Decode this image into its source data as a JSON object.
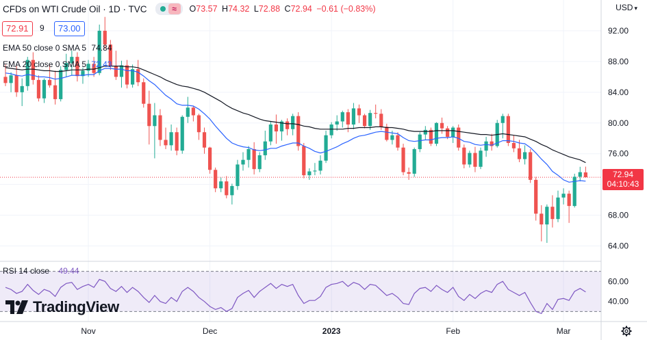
{
  "header": {
    "symbol": "CFDs on WTI Crude Oil · 1D · TVC",
    "ohlc": [
      {
        "k": "O",
        "v": "73.57"
      },
      {
        "k": "H",
        "v": "74.32"
      },
      {
        "k": "L",
        "v": "72.88"
      },
      {
        "k": "C",
        "v": "72.94"
      },
      {
        "k": "",
        "v": "−0.61 (−0.83%)"
      }
    ]
  },
  "trade": {
    "bid": "72.91",
    "spread": "9",
    "ask": "73.00"
  },
  "indicators": {
    "ema50_label": "EMA 50 close 0 SMA 5",
    "ema50_value": "74.84",
    "ema20_label": "EMA 20 close 0 SMA 5",
    "ema20_value": "72.43",
    "rsi_label": "RSI 14 close",
    "rsi_value": "49.44"
  },
  "currency": "USD",
  "last_price": {
    "price": "72.94",
    "countdown": "04:10:43"
  },
  "brand": "TradingView",
  "colors": {
    "up": "#22ab94",
    "down": "#ef5350",
    "ema20": "#2962ff",
    "ema50": "#131722",
    "rsi": "#7e57c2",
    "last": "#f23645"
  },
  "chart_data": {
    "type": "candlestick",
    "y_ticks": [
      "92.00",
      "88.00",
      "84.00",
      "80.00",
      "76.00",
      "72.00",
      "68.00",
      "64.00"
    ],
    "rsi_ticks": [
      "60.00",
      "40.00"
    ],
    "x_ticks": [
      {
        "label": "Nov",
        "i": 15
      },
      {
        "label": "Dec",
        "i": 37
      },
      {
        "label": "2023",
        "i": 59
      },
      {
        "label": "Feb",
        "i": 81
      },
      {
        "label": "Mar",
        "i": 101
      }
    ],
    "ylim": [
      62,
      96
    ],
    "rsi_band": [
      30,
      70
    ],
    "candles": [
      [
        86.0,
        87.6,
        84.8,
        85.2
      ],
      [
        85.2,
        86.6,
        84.0,
        86.2
      ],
      [
        86.2,
        87.4,
        83.4,
        84.0
      ],
      [
        84.0,
        85.8,
        82.2,
        84.8
      ],
      [
        84.8,
        88.6,
        84.2,
        88.2
      ],
      [
        88.2,
        89.2,
        85.0,
        85.6
      ],
      [
        85.6,
        86.2,
        82.8,
        83.2
      ],
      [
        83.2,
        85.8,
        82.6,
        85.6
      ],
      [
        85.6,
        87.6,
        84.6,
        84.9
      ],
      [
        84.9,
        86.8,
        82.4,
        83.1
      ],
      [
        83.1,
        87.4,
        82.8,
        86.9
      ],
      [
        86.9,
        89.0,
        86.0,
        87.8
      ],
      [
        87.8,
        89.4,
        86.2,
        88.6
      ],
      [
        88.6,
        89.2,
        85.4,
        86.1
      ],
      [
        86.1,
        87.2,
        85.1,
        86.8
      ],
      [
        86.8,
        88.2,
        86.0,
        87.7
      ],
      [
        87.7,
        88.6,
        86.0,
        86.5
      ],
      [
        86.5,
        92.8,
        86.2,
        92.0
      ],
      [
        92.0,
        93.8,
        89.6,
        90.2
      ],
      [
        90.2,
        90.8,
        86.9,
        87.4
      ],
      [
        87.4,
        89.4,
        85.6,
        86.0
      ],
      [
        86.0,
        88.1,
        84.6,
        87.5
      ],
      [
        87.5,
        88.2,
        84.5,
        85.0
      ],
      [
        85.0,
        87.6,
        84.6,
        87.0
      ],
      [
        87.0,
        88.2,
        84.8,
        85.3
      ],
      [
        85.3,
        85.8,
        82.0,
        82.5
      ],
      [
        82.5,
        84.2,
        77.2,
        79.6
      ],
      [
        79.6,
        82.6,
        75.4,
        81.0
      ],
      [
        81.0,
        81.8,
        77.0,
        77.8
      ],
      [
        77.8,
        79.4,
        76.6,
        77.1
      ],
      [
        77.1,
        79.8,
        76.4,
        78.8
      ],
      [
        78.8,
        79.4,
        75.8,
        76.4
      ],
      [
        76.4,
        81.0,
        76.0,
        80.8
      ],
      [
        80.8,
        83.4,
        80.0,
        82.0
      ],
      [
        82.0,
        82.2,
        80.2,
        81.0
      ],
      [
        81.0,
        81.2,
        77.8,
        78.8
      ],
      [
        78.8,
        79.4,
        76.0,
        76.8
      ],
      [
        76.8,
        76.9,
        73.4,
        73.9
      ],
      [
        73.9,
        74.2,
        71.0,
        71.5
      ],
      [
        71.5,
        72.9,
        71.0,
        72.4
      ],
      [
        72.4,
        73.1,
        70.2,
        70.6
      ],
      [
        70.6,
        72.1,
        69.4,
        71.8
      ],
      [
        71.8,
        75.2,
        71.3,
        74.6
      ],
      [
        74.6,
        76.2,
        73.8,
        75.2
      ],
      [
        75.2,
        77.0,
        74.2,
        76.6
      ],
      [
        76.6,
        77.5,
        73.3,
        74.0
      ],
      [
        74.0,
        76.2,
        73.6,
        75.8
      ],
      [
        75.8,
        79.0,
        75.2,
        77.6
      ],
      [
        77.6,
        80.2,
        77.1,
        79.8
      ],
      [
        79.8,
        81.1,
        77.3,
        78.9
      ],
      [
        78.9,
        80.4,
        77.7,
        80.2
      ],
      [
        80.2,
        80.6,
        78.4,
        79.2
      ],
      [
        79.2,
        81.2,
        78.4,
        80.9
      ],
      [
        80.9,
        81.4,
        76.4,
        77.0
      ],
      [
        77.0,
        77.4,
        72.8,
        73.2
      ],
      [
        73.2,
        74.1,
        72.6,
        73.7
      ],
      [
        73.7,
        74.8,
        73.2,
        73.8
      ],
      [
        73.8,
        75.8,
        73.3,
        75.1
      ],
      [
        75.1,
        79.0,
        74.8,
        78.4
      ],
      [
        78.4,
        80.1,
        78.0,
        79.8
      ],
      [
        79.8,
        81.0,
        79.0,
        80.2
      ],
      [
        80.2,
        81.6,
        79.4,
        81.4
      ],
      [
        81.4,
        81.8,
        78.8,
        79.8
      ],
      [
        79.8,
        82.6,
        79.2,
        81.9
      ],
      [
        81.9,
        82.4,
        80.0,
        81.0
      ],
      [
        81.0,
        81.2,
        79.3,
        79.6
      ],
      [
        79.6,
        81.7,
        79.1,
        81.3
      ],
      [
        81.3,
        82.4,
        80.6,
        81.2
      ],
      [
        81.2,
        81.8,
        79.1,
        79.5
      ],
      [
        79.5,
        79.9,
        77.6,
        77.8
      ],
      [
        77.8,
        79.0,
        77.2,
        78.4
      ],
      [
        78.4,
        78.8,
        76.4,
        76.8
      ],
      [
        76.8,
        77.3,
        73.2,
        73.6
      ],
      [
        73.6,
        74.2,
        72.6,
        73.4
      ],
      [
        73.4,
        76.8,
        73.0,
        76.6
      ],
      [
        76.6,
        78.8,
        76.2,
        78.5
      ],
      [
        78.5,
        79.6,
        77.8,
        79.1
      ],
      [
        79.1,
        79.4,
        77.0,
        77.3
      ],
      [
        77.3,
        80.1,
        77.0,
        80.0
      ],
      [
        80.0,
        80.7,
        78.6,
        79.3
      ],
      [
        79.3,
        79.6,
        77.9,
        78.2
      ],
      [
        78.2,
        79.6,
        77.4,
        79.4
      ],
      [
        79.4,
        79.8,
        76.4,
        76.8
      ],
      [
        76.8,
        77.2,
        74.1,
        74.6
      ],
      [
        74.6,
        76.4,
        74.2,
        76.1
      ],
      [
        76.1,
        76.9,
        73.6,
        74.3
      ],
      [
        74.3,
        76.8,
        74.0,
        76.4
      ],
      [
        76.4,
        78.2,
        75.6,
        77.6
      ],
      [
        77.6,
        78.6,
        76.4,
        77.0
      ],
      [
        77.0,
        80.4,
        76.8,
        80.0
      ],
      [
        80.0,
        81.2,
        78.0,
        80.9
      ],
      [
        80.9,
        81.2,
        77.0,
        77.4
      ],
      [
        77.4,
        78.4,
        76.2,
        76.7
      ],
      [
        76.7,
        77.8,
        74.9,
        75.3
      ],
      [
        75.3,
        77.1,
        74.6,
        76.2
      ],
      [
        76.2,
        76.6,
        72.2,
        72.6
      ],
      [
        72.6,
        73.0,
        67.3,
        68.2
      ],
      [
        68.2,
        69.3,
        64.6,
        66.8
      ],
      [
        66.8,
        69.4,
        64.4,
        69.1
      ],
      [
        69.1,
        70.6,
        66.4,
        67.5
      ],
      [
        67.5,
        71.2,
        67.1,
        70.3
      ],
      [
        70.3,
        71.5,
        69.4,
        70.8
      ],
      [
        70.8,
        71.2,
        67.0,
        69.2
      ],
      [
        69.2,
        73.4,
        69.0,
        73.0
      ],
      [
        73.0,
        74.3,
        72.4,
        73.6
      ],
      [
        73.57,
        74.32,
        72.88,
        72.94
      ]
    ],
    "ema20": [
      86.5,
      86.4,
      86.2,
      86.1,
      86.3,
      86.2,
      86.0,
      86.0,
      85.9,
      85.7,
      85.8,
      86.0,
      86.2,
      86.2,
      86.2,
      86.3,
      86.3,
      86.8,
      87.1,
      87.1,
      87.0,
      87.0,
      86.8,
      86.8,
      86.6,
      86.1,
      85.5,
      85.0,
      84.3,
      83.6,
      83.1,
      82.5,
      82.3,
      82.3,
      82.2,
      81.8,
      81.2,
      80.5,
      79.6,
      78.8,
      78.0,
      77.4,
      77.1,
      76.9,
      76.8,
      76.5,
      76.4,
      76.5,
      76.7,
      76.7,
      77.0,
      77.2,
      77.4,
      77.4,
      77.0,
      76.7,
      76.3,
      76.1,
      76.3,
      76.6,
      76.9,
      77.3,
      77.6,
      78.0,
      78.3,
      78.4,
      78.6,
      78.8,
      78.9,
      78.8,
      78.7,
      78.6,
      78.1,
      77.7,
      77.6,
      77.7,
      77.8,
      77.8,
      78.0,
      78.1,
      78.1,
      78.2,
      78.0,
      77.6,
      77.5,
      77.2,
      77.1,
      77.2,
      77.1,
      77.4,
      77.7,
      77.7,
      77.6,
      77.4,
      77.3,
      76.8,
      76.1,
      75.3,
      74.6,
      73.7,
      73.2,
      72.6,
      72.3,
      72.4,
      72.5,
      72.43
    ],
    "ema50": [
      87.2,
      87.1,
      87.0,
      86.9,
      87.0,
      87.0,
      86.9,
      86.8,
      86.8,
      86.7,
      86.7,
      86.8,
      86.9,
      86.9,
      86.9,
      87.0,
      87.0,
      87.2,
      87.4,
      87.4,
      87.4,
      87.4,
      87.3,
      87.3,
      87.2,
      86.9,
      86.6,
      86.3,
      86.0,
      85.6,
      85.3,
      85.0,
      84.8,
      84.7,
      84.5,
      84.3,
      84.0,
      83.6,
      83.2,
      82.8,
      82.3,
      81.9,
      81.6,
      81.3,
      81.1,
      80.8,
      80.5,
      80.3,
      80.2,
      80.1,
      80.0,
      79.9,
      79.9,
      79.8,
      79.6,
      79.5,
      79.3,
      79.2,
      79.2,
      79.2,
      79.2,
      79.2,
      79.3,
      79.3,
      79.4,
      79.4,
      79.4,
      79.5,
      79.5,
      79.4,
      79.4,
      79.3,
      79.2,
      79.0,
      78.9,
      78.9,
      78.9,
      78.9,
      79.0,
      79.0,
      79.0,
      79.0,
      78.9,
      78.8,
      78.7,
      78.6,
      78.5,
      78.5,
      78.4,
      78.5,
      78.6,
      78.5,
      78.4,
      78.3,
      78.2,
      77.9,
      77.6,
      77.2,
      76.9,
      76.5,
      76.2,
      75.9,
      75.6,
      75.4,
      75.2,
      74.84
    ],
    "rsi": [
      54,
      52,
      48,
      50,
      57,
      51,
      47,
      52,
      50,
      45,
      54,
      58,
      59,
      52,
      55,
      57,
      54,
      62,
      60,
      53,
      50,
      55,
      49,
      54,
      50,
      44,
      39,
      46,
      40,
      38,
      44,
      40,
      50,
      54,
      50,
      44,
      40,
      35,
      32,
      34,
      30,
      33,
      44,
      48,
      51,
      44,
      50,
      54,
      58,
      53,
      57,
      55,
      57,
      46,
      38,
      41,
      41,
      45,
      54,
      57,
      58,
      60,
      55,
      59,
      57,
      52,
      57,
      56,
      51,
      46,
      48,
      44,
      38,
      37,
      48,
      53,
      54,
      50,
      56,
      52,
      49,
      54,
      45,
      41,
      47,
      43,
      48,
      51,
      49,
      57,
      60,
      52,
      49,
      46,
      49,
      39,
      30,
      28,
      38,
      32,
      42,
      43,
      41,
      50,
      53,
      49.44
    ]
  }
}
